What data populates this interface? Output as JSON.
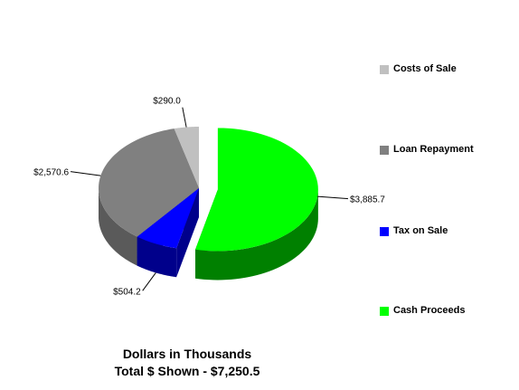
{
  "chart_data": {
    "type": "pie",
    "categories": [
      "Costs of Sale",
      "Loan Repayment",
      "Tax on Sale",
      "Cash Proceeds"
    ],
    "values": [
      290.0,
      2570.6,
      504.2,
      3885.7
    ],
    "data_labels": [
      "$290.0",
      "$2,570.6",
      "$504.2",
      "$3,885.7"
    ],
    "colors": [
      "#c0c0c0",
      "#808080",
      "#0000ff",
      "#00ff00"
    ],
    "side_colors": [
      "#808080",
      "#5a5a5a",
      "#00008b",
      "#008000"
    ],
    "exploded": [
      "Cash Proceeds"
    ],
    "legend_position": "right",
    "caption_line1": "Dollars in Thousands",
    "caption_line2": "Total $ Shown - $7,250.5"
  }
}
